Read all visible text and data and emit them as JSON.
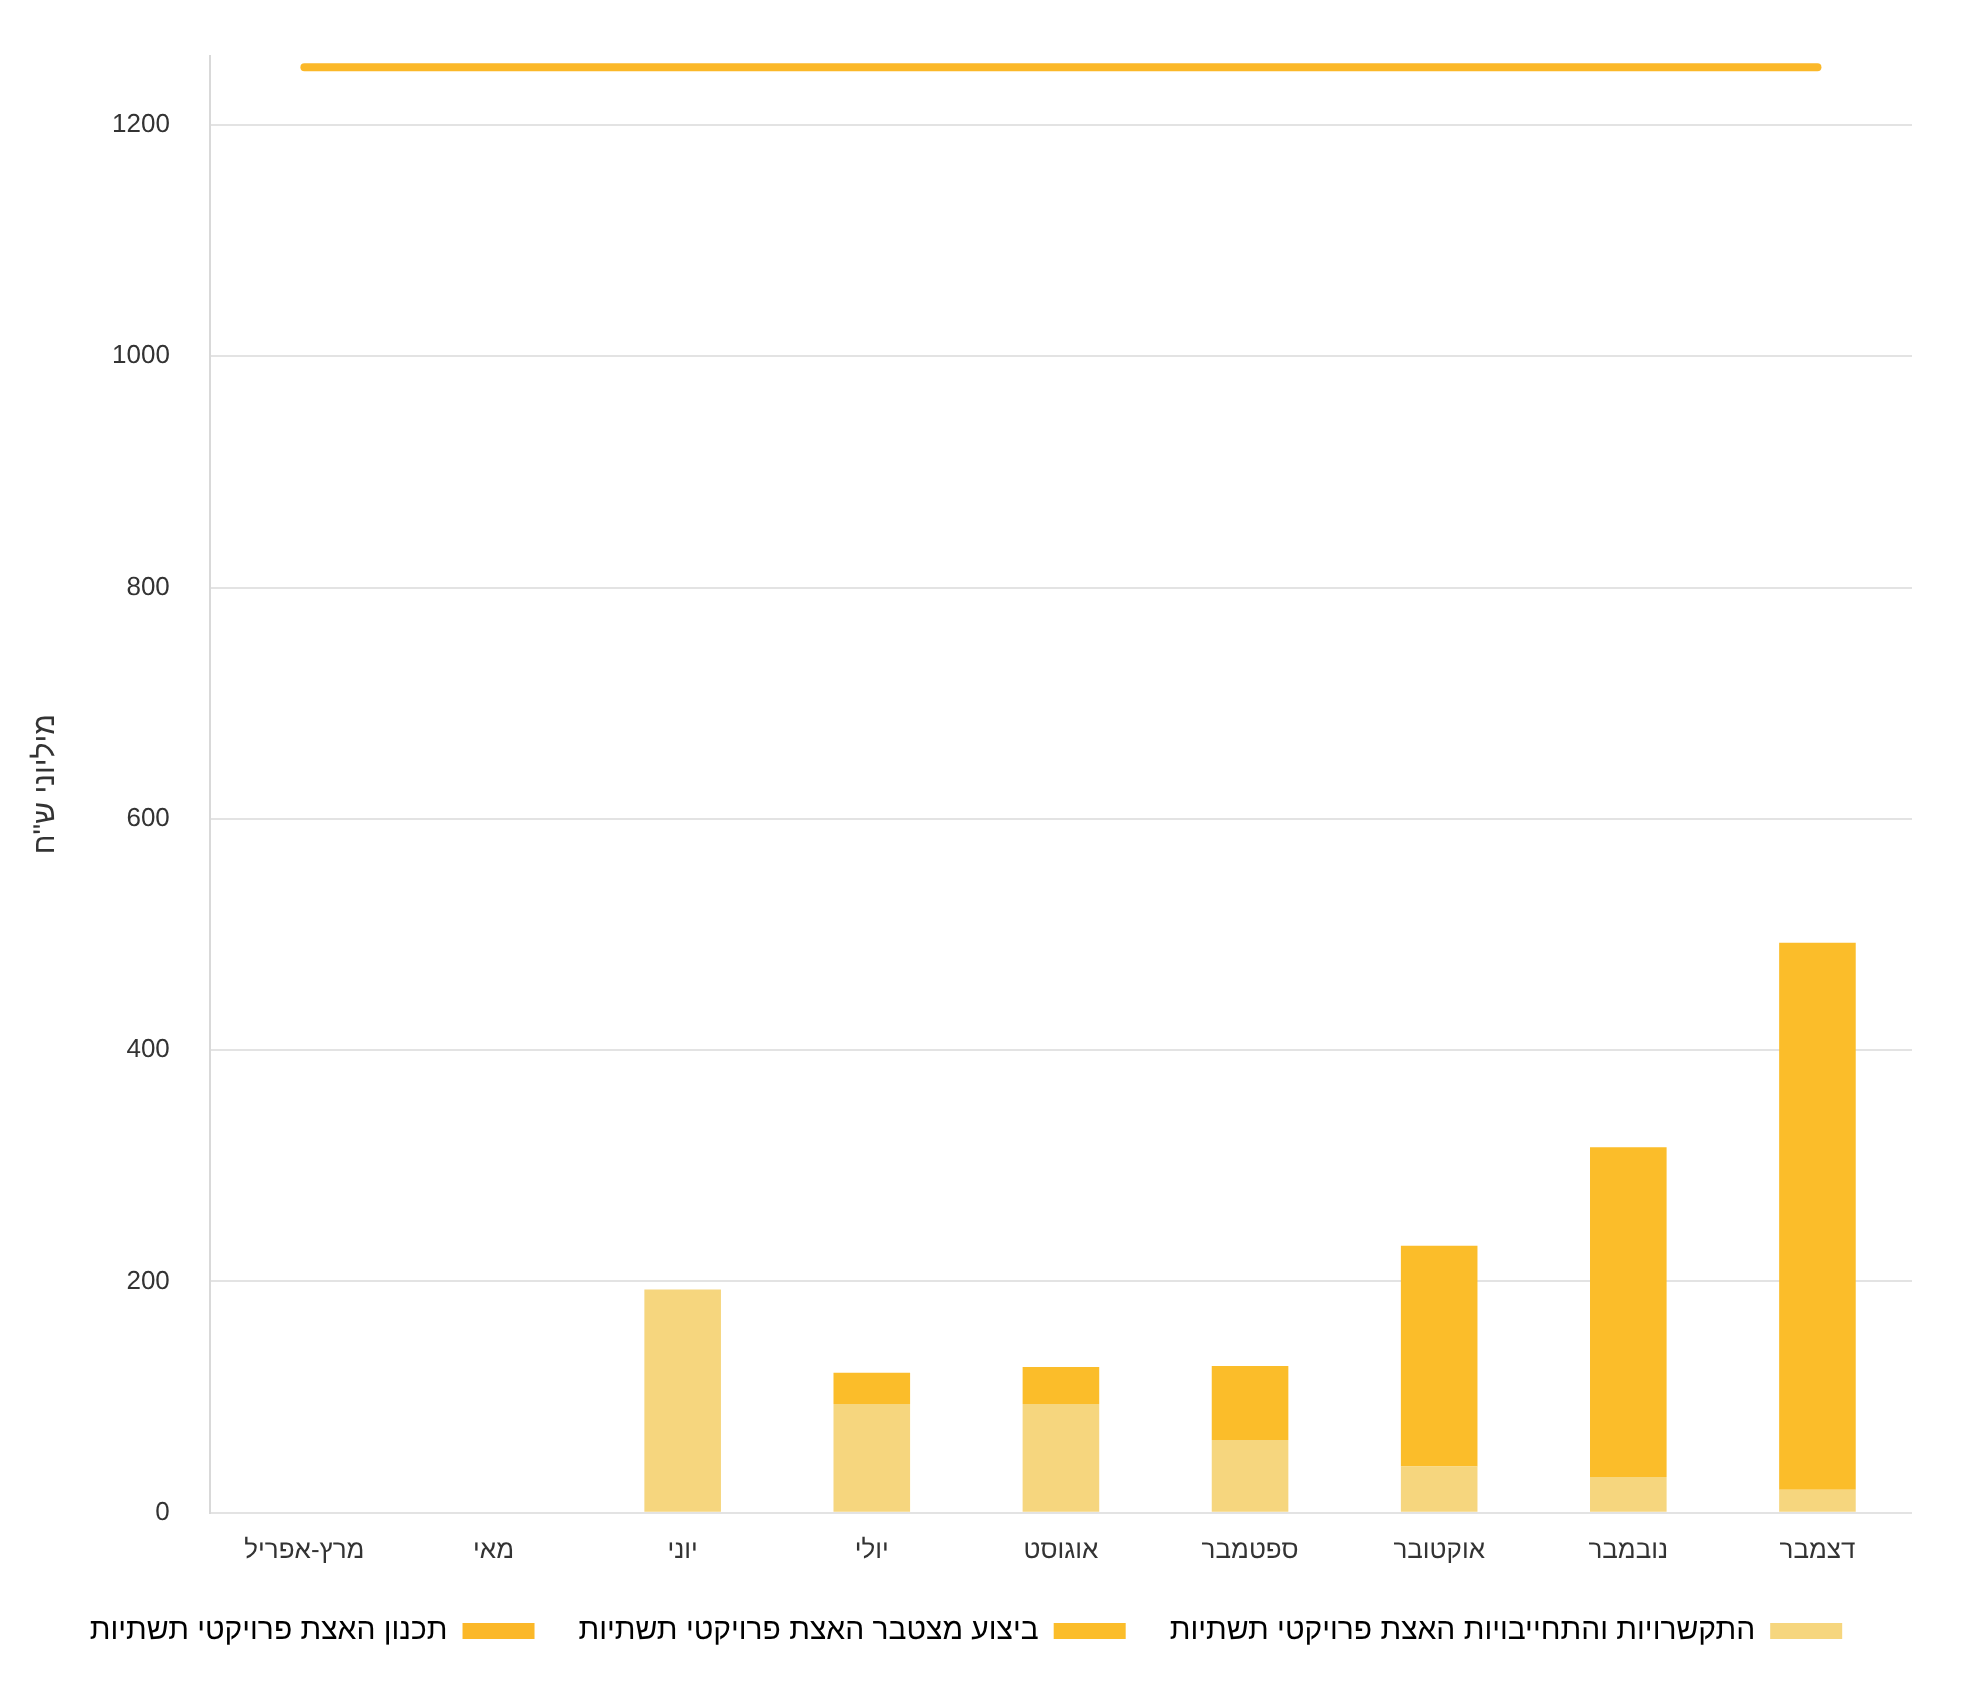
{
  "chart_data": {
    "type": "bar",
    "ylabel": "מיליוני ש\"ח",
    "categories": [
      "מרץ-אפריל",
      "מאי",
      "יוני",
      "יולי",
      "אוגוסט",
      "ספטמבר",
      "אוקטובר",
      "נובמבר",
      "דצמבר"
    ],
    "series": [
      {
        "name": "התקשרויות והתחייבויות האצת פרויקטי תשתיות",
        "color": "#f6d67e",
        "values": [
          0,
          0,
          193,
          94,
          94,
          63,
          40,
          31,
          20
        ]
      },
      {
        "name": "ביצוע מצטבר האצת פרויקטי תשתיות",
        "color": "#fbbd2a",
        "values": [
          0,
          0,
          0,
          27,
          32,
          64,
          191,
          285,
          473
        ]
      },
      {
        "name": "תכנון האצת פרויקטי תשתיות",
        "type": "line",
        "color": "#fbb829",
        "values": [
          1250,
          1250,
          1250,
          1250,
          1250,
          1250,
          1250,
          1250,
          1250
        ]
      }
    ],
    "stacked": true,
    "ylim": [
      0,
      1260
    ],
    "yticks": [
      0,
      200,
      400,
      600,
      800,
      1000,
      1200
    ],
    "grid": "y",
    "legend": "bottom",
    "marker": "none"
  }
}
